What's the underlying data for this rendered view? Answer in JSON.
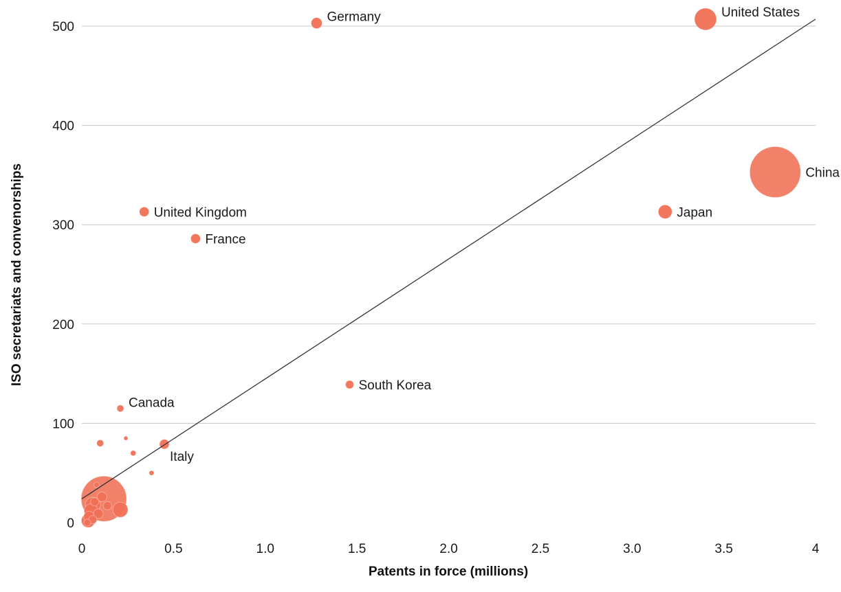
{
  "chart_data": {
    "type": "scatter",
    "title": "",
    "xlabel": "Patents in force (millions)",
    "ylabel": "ISO secretariats and convenorships",
    "xlim": [
      0,
      4
    ],
    "ylim": [
      0,
      500
    ],
    "x_ticks": [
      "0",
      "0.5",
      "1.0",
      "1.5",
      "2.0",
      "2.5",
      "3.0",
      "3.5",
      "4"
    ],
    "y_ticks": [
      "0",
      "100",
      "200",
      "300",
      "400",
      "500"
    ],
    "grid": "horizontal",
    "marker_color": "#f07055",
    "trendline_color": "#333333",
    "trendline": [
      {
        "x": 0,
        "y": 24
      },
      {
        "x": 4,
        "y": 507
      }
    ],
    "points": [
      {
        "label": "United States",
        "x": 3.4,
        "y": 507,
        "r": 16
      },
      {
        "label": "Germany",
        "x": 1.28,
        "y": 503,
        "r": 8
      },
      {
        "label": "China",
        "x": 3.78,
        "y": 353,
        "r": 37
      },
      {
        "label": "Japan",
        "x": 3.18,
        "y": 313,
        "r": 10
      },
      {
        "label": "United Kingdom",
        "x": 0.34,
        "y": 313,
        "r": 7
      },
      {
        "label": "France",
        "x": 0.62,
        "y": 286,
        "r": 7
      },
      {
        "label": "South Korea",
        "x": 1.46,
        "y": 139,
        "r": 6
      },
      {
        "label": "Canada",
        "x": 0.21,
        "y": 115,
        "r": 5
      },
      {
        "label": "Italy",
        "x": 0.45,
        "y": 79,
        "r": 7
      },
      {
        "label": "",
        "x": 0.1,
        "y": 80,
        "r": 5
      },
      {
        "label": "",
        "x": 0.24,
        "y": 85,
        "r": 3
      },
      {
        "label": "",
        "x": 0.28,
        "y": 70,
        "r": 4
      },
      {
        "label": "",
        "x": 0.38,
        "y": 50,
        "r": 3.5
      },
      {
        "label": "",
        "x": 0.08,
        "y": 38,
        "r": 4
      },
      {
        "label": "",
        "x": 0.12,
        "y": 24,
        "r": 33
      },
      {
        "label": "",
        "x": 0.06,
        "y": 18,
        "r": 11
      },
      {
        "label": "",
        "x": 0.05,
        "y": 12,
        "r": 10
      },
      {
        "label": "",
        "x": 0.11,
        "y": 26,
        "r": 7
      },
      {
        "label": "",
        "x": 0.14,
        "y": 17,
        "r": 6
      },
      {
        "label": "",
        "x": 0.21,
        "y": 13,
        "r": 11
      },
      {
        "label": "",
        "x": 0.09,
        "y": 9,
        "r": 7
      },
      {
        "label": "",
        "x": 0.04,
        "y": 6,
        "r": 8
      },
      {
        "label": "",
        "x": 0.035,
        "y": 2,
        "r": 10
      },
      {
        "label": "",
        "x": 0.06,
        "y": 3,
        "r": 6
      },
      {
        "label": "",
        "x": 0.03,
        "y": 0,
        "r": 5
      },
      {
        "label": "",
        "x": 0.07,
        "y": 21,
        "r": 6
      }
    ]
  }
}
